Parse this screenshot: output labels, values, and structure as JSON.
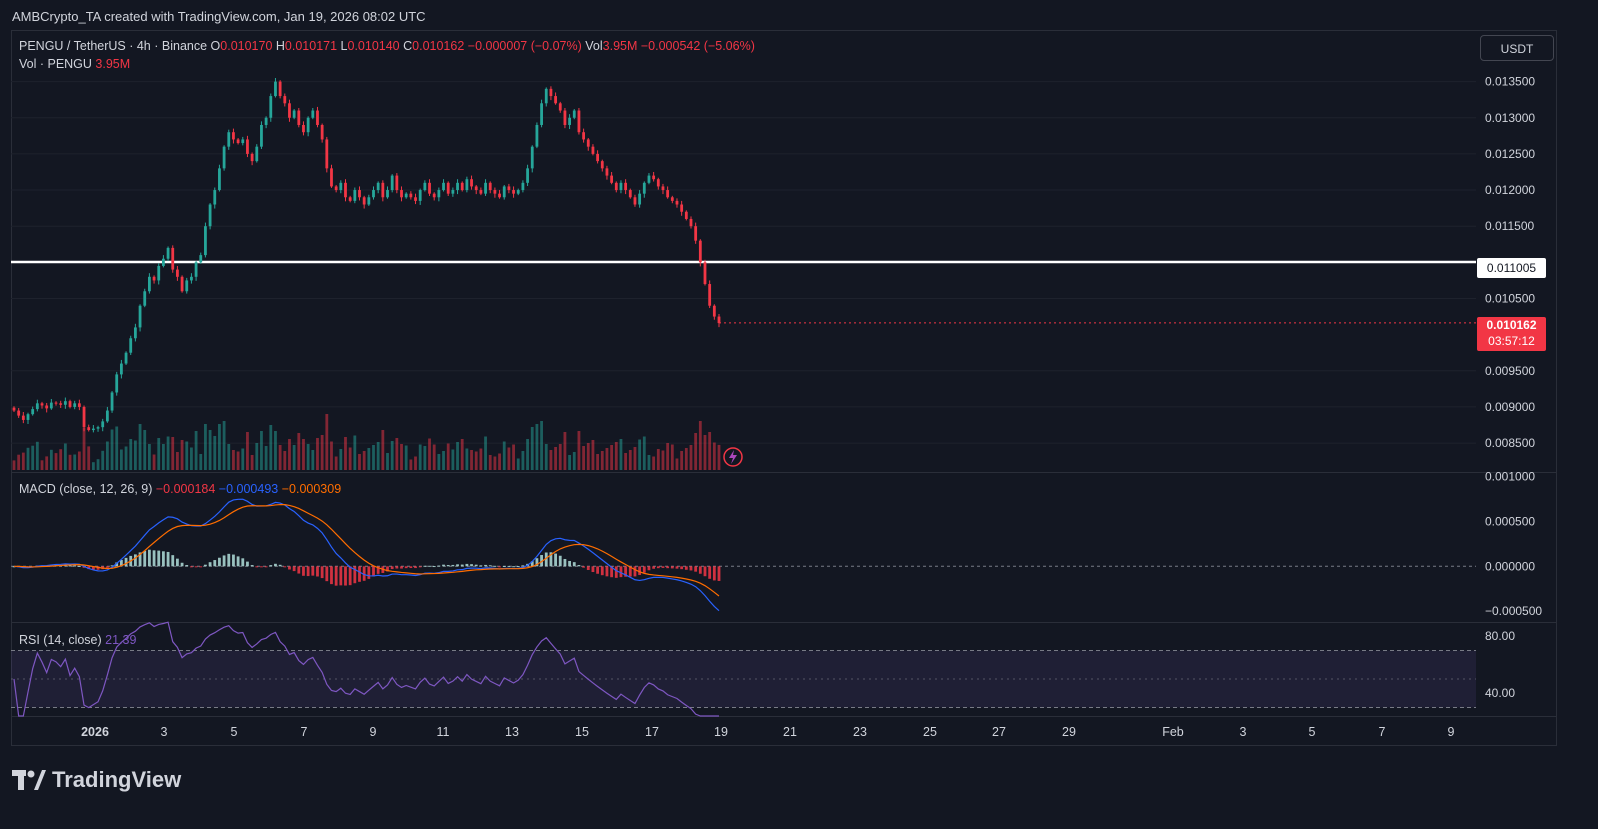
{
  "header": {
    "credit": "AMBCrypto_TA created with TradingView.com, Jan 19, 2026 08:02 UTC"
  },
  "legend": {
    "symbol": "PENGU / TetherUS · 4h · Binance",
    "o_key": "O",
    "o_val": "0.010170",
    "h_key": "H",
    "h_val": "0.010171",
    "l_key": "L",
    "l_val": "0.010140",
    "c_key": "C",
    "c_val": "0.010162",
    "change": "−0.000007 (−0.07%)",
    "vol_key": "Vol",
    "vol_val": "3.95M",
    "vol_change": "−0.000542 (−5.06%)",
    "vol_line_label": "Vol · PENGU",
    "vol_line_val": "3.95M"
  },
  "macd_legend": {
    "label": "MACD (close, 12, 26, 9)",
    "hist": "−0.000184",
    "macd": "−0.000493",
    "signal": "−0.000309"
  },
  "rsi_legend": {
    "label": "RSI (14, close)",
    "value": "21.39"
  },
  "currency_button": "USDT",
  "level_tag": "0.011005",
  "last_price_tag": {
    "price": "0.010162",
    "countdown": "03:57:12"
  },
  "brand": "TradingView",
  "colors": {
    "up": "#26a69a",
    "down": "#f23645",
    "macd": "#2962ff",
    "signal": "#ff6d00",
    "rsi": "#7e57c2",
    "level": "#ffffff",
    "bg": "#131722"
  },
  "chart_data": {
    "type": "candlestick",
    "timeframe": "4h",
    "price_axis_ticks": [
      "0.013500",
      "0.013000",
      "0.012500",
      "0.012000",
      "0.011500",
      "0.010500",
      "0.009500",
      "0.009000",
      "0.008500"
    ],
    "price_range": [
      0.0081,
      0.0142
    ],
    "horizontal_level": 0.011005,
    "last_price": 0.010162,
    "x_axis_ticks": [
      "2026",
      "3",
      "5",
      "7",
      "9",
      "11",
      "13",
      "15",
      "17",
      "19",
      "21",
      "23",
      "25",
      "27",
      "29",
      "Feb",
      "3",
      "5",
      "7",
      "9"
    ],
    "closes": [
      0.00895,
      0.00888,
      0.00882,
      0.0089,
      0.00897,
      0.00905,
      0.00902,
      0.00898,
      0.00906,
      0.00905,
      0.00903,
      0.00908,
      0.009,
      0.00905,
      0.009,
      0.00872,
      0.00868,
      0.0087,
      0.00872,
      0.0088,
      0.00895,
      0.0092,
      0.00945,
      0.0096,
      0.00975,
      0.00995,
      0.0101,
      0.0104,
      0.0106,
      0.0108,
      0.01075,
      0.01095,
      0.01105,
      0.0112,
      0.0109,
      0.0108,
      0.0106,
      0.01075,
      0.0108,
      0.011,
      0.0111,
      0.0115,
      0.0118,
      0.012,
      0.0123,
      0.0126,
      0.0128,
      0.0127,
      0.01265,
      0.0127,
      0.0125,
      0.0124,
      0.0126,
      0.0129,
      0.013,
      0.0133,
      0.0135,
      0.0133,
      0.0132,
      0.013,
      0.0131,
      0.0129,
      0.0128,
      0.013,
      0.0131,
      0.0129,
      0.0127,
      0.0123,
      0.01205,
      0.012,
      0.0121,
      0.0119,
      0.01185,
      0.012,
      0.0119,
      0.0118,
      0.0119,
      0.012,
      0.0121,
      0.0119,
      0.012,
      0.0122,
      0.012,
      0.0119,
      0.01195,
      0.0119,
      0.01185,
      0.012,
      0.0121,
      0.01195,
      0.0119,
      0.012,
      0.0121,
      0.01195,
      0.012,
      0.0121,
      0.012,
      0.01215,
      0.01205,
      0.012,
      0.01195,
      0.0121,
      0.012,
      0.01195,
      0.0119,
      0.01205,
      0.012,
      0.01195,
      0.012,
      0.0121,
      0.0123,
      0.0126,
      0.0129,
      0.0132,
      0.0134,
      0.0133,
      0.0132,
      0.0131,
      0.0129,
      0.013,
      0.0131,
      0.0128,
      0.0127,
      0.0126,
      0.0125,
      0.0124,
      0.0123,
      0.0122,
      0.0121,
      0.012,
      0.0121,
      0.012,
      0.0119,
      0.0118,
      0.01195,
      0.0121,
      0.0122,
      0.01215,
      0.01205,
      0.012,
      0.0119,
      0.01185,
      0.0118,
      0.0117,
      0.0116,
      0.0115,
      0.0113,
      0.011,
      0.0107,
      0.0104,
      0.01025,
      0.01016
    ],
    "volume_note": "Vol · PENGU 3.95M",
    "macd_axis_ticks": [
      "0.001000",
      "0.000500",
      "0.000000",
      "−0.000500"
    ],
    "macd_range": [
      -0.00062,
      0.00105
    ],
    "rsi_axis_ticks": [
      "80.00",
      "40.00"
    ],
    "rsi_bands": [
      70,
      30
    ],
    "rsi_range": [
      24,
      90
    ]
  }
}
